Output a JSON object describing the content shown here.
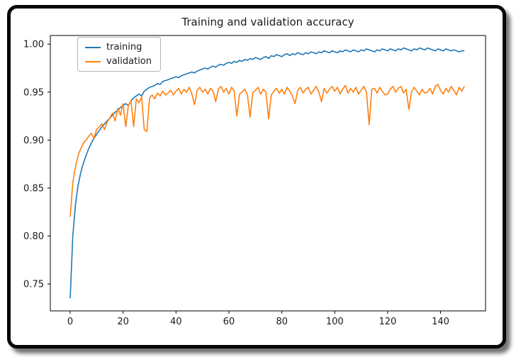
{
  "frame": {
    "background_color": "#ffffff",
    "border_color": "#060606"
  },
  "chart_data": {
    "type": "line",
    "title": "Training and validation accuracy",
    "xlabel": "",
    "ylabel": "",
    "grid": false,
    "legend_position": "upper-left",
    "axis_color": "#000000",
    "xlim": [
      -7.5,
      157
    ],
    "ylim": [
      0.722,
      1.009
    ],
    "x_ticks": [
      0,
      20,
      40,
      60,
      80,
      100,
      120,
      140
    ],
    "x_tick_labels": [
      "0",
      "20",
      "40",
      "60",
      "80",
      "100",
      "120",
      "140"
    ],
    "y_ticks": [
      0.75,
      0.8,
      0.85,
      0.9,
      0.95,
      1.0
    ],
    "y_tick_labels": [
      "0.75",
      "0.80",
      "0.85",
      "0.90",
      "0.95",
      "1.00"
    ],
    "x": [
      0,
      1,
      2,
      3,
      4,
      5,
      6,
      7,
      8,
      9,
      10,
      11,
      12,
      13,
      14,
      15,
      16,
      17,
      18,
      19,
      20,
      21,
      22,
      23,
      24,
      25,
      26,
      27,
      28,
      29,
      30,
      31,
      32,
      33,
      34,
      35,
      36,
      37,
      38,
      39,
      40,
      41,
      42,
      43,
      44,
      45,
      46,
      47,
      48,
      49,
      50,
      51,
      52,
      53,
      54,
      55,
      56,
      57,
      58,
      59,
      60,
      61,
      62,
      63,
      64,
      65,
      66,
      67,
      68,
      69,
      70,
      71,
      72,
      73,
      74,
      75,
      76,
      77,
      78,
      79,
      80,
      81,
      82,
      83,
      84,
      85,
      86,
      87,
      88,
      89,
      90,
      91,
      92,
      93,
      94,
      95,
      96,
      97,
      98,
      99,
      100,
      101,
      102,
      103,
      104,
      105,
      106,
      107,
      108,
      109,
      110,
      111,
      112,
      113,
      114,
      115,
      116,
      117,
      118,
      119,
      120,
      121,
      122,
      123,
      124,
      125,
      126,
      127,
      128,
      129,
      130,
      131,
      132,
      133,
      134,
      135,
      136,
      137,
      138,
      139,
      140,
      141,
      142,
      143,
      144,
      145,
      146,
      147,
      148,
      149
    ],
    "series": [
      {
        "name": "training",
        "color": "#1f77b4",
        "values": [
          0.735,
          0.8,
          0.833,
          0.853,
          0.866,
          0.876,
          0.884,
          0.891,
          0.897,
          0.902,
          0.906,
          0.91,
          0.914,
          0.917,
          0.92,
          0.923,
          0.926,
          0.929,
          0.931,
          0.934,
          0.936,
          0.938,
          0.936,
          0.941,
          0.944,
          0.946,
          0.948,
          0.946,
          0.951,
          0.953,
          0.955,
          0.956,
          0.957,
          0.959,
          0.958,
          0.961,
          0.962,
          0.963,
          0.964,
          0.965,
          0.966,
          0.965,
          0.967,
          0.968,
          0.969,
          0.97,
          0.971,
          0.97,
          0.972,
          0.973,
          0.974,
          0.975,
          0.974,
          0.976,
          0.977,
          0.976,
          0.978,
          0.979,
          0.978,
          0.98,
          0.981,
          0.98,
          0.982,
          0.981,
          0.983,
          0.982,
          0.984,
          0.983,
          0.985,
          0.984,
          0.986,
          0.985,
          0.984,
          0.986,
          0.987,
          0.985,
          0.988,
          0.987,
          0.989,
          0.988,
          0.987,
          0.989,
          0.99,
          0.988,
          0.99,
          0.989,
          0.991,
          0.99,
          0.989,
          0.991,
          0.99,
          0.992,
          0.991,
          0.99,
          0.992,
          0.991,
          0.993,
          0.992,
          0.991,
          0.993,
          0.992,
          0.991,
          0.993,
          0.992,
          0.994,
          0.993,
          0.992,
          0.994,
          0.993,
          0.992,
          0.994,
          0.993,
          0.995,
          0.994,
          0.993,
          0.992,
          0.994,
          0.993,
          0.995,
          0.994,
          0.993,
          0.995,
          0.994,
          0.993,
          0.995,
          0.994,
          0.996,
          0.995,
          0.994,
          0.993,
          0.995,
          0.994,
          0.996,
          0.995,
          0.994,
          0.996,
          0.995,
          0.994,
          0.993,
          0.995,
          0.994,
          0.993,
          0.995,
          0.994,
          0.993,
          0.994,
          0.993,
          0.992,
          0.993,
          0.993
        ]
      },
      {
        "name": "validation",
        "color": "#ff7f0e",
        "values": [
          0.82,
          0.856,
          0.872,
          0.884,
          0.891,
          0.897,
          0.9,
          0.904,
          0.907,
          0.902,
          0.911,
          0.914,
          0.917,
          0.911,
          0.919,
          0.923,
          0.928,
          0.92,
          0.933,
          0.926,
          0.938,
          0.914,
          0.936,
          0.941,
          0.914,
          0.943,
          0.939,
          0.945,
          0.911,
          0.909,
          0.944,
          0.947,
          0.943,
          0.949,
          0.946,
          0.951,
          0.947,
          0.949,
          0.952,
          0.947,
          0.951,
          0.954,
          0.948,
          0.953,
          0.95,
          0.955,
          0.948,
          0.937,
          0.952,
          0.955,
          0.95,
          0.953,
          0.948,
          0.954,
          0.951,
          0.94,
          0.953,
          0.956,
          0.95,
          0.954,
          0.948,
          0.955,
          0.951,
          0.925,
          0.948,
          0.95,
          0.953,
          0.947,
          0.924,
          0.949,
          0.952,
          0.955,
          0.948,
          0.953,
          0.95,
          0.922,
          0.947,
          0.951,
          0.954,
          0.949,
          0.953,
          0.948,
          0.955,
          0.951,
          0.946,
          0.938,
          0.952,
          0.955,
          0.949,
          0.953,
          0.955,
          0.948,
          0.952,
          0.956,
          0.95,
          0.94,
          0.954,
          0.949,
          0.953,
          0.956,
          0.951,
          0.955,
          0.948,
          0.953,
          0.957,
          0.949,
          0.954,
          0.95,
          0.955,
          0.948,
          0.952,
          0.956,
          0.95,
          0.916,
          0.953,
          0.954,
          0.949,
          0.955,
          0.951,
          0.947,
          0.948,
          0.953,
          0.956,
          0.95,
          0.954,
          0.956,
          0.949,
          0.953,
          0.932,
          0.95,
          0.955,
          0.951,
          0.947,
          0.953,
          0.949,
          0.95,
          0.954,
          0.948,
          0.956,
          0.958,
          0.952,
          0.948,
          0.954,
          0.95,
          0.956,
          0.952,
          0.947,
          0.955,
          0.951,
          0.956
        ]
      }
    ]
  }
}
